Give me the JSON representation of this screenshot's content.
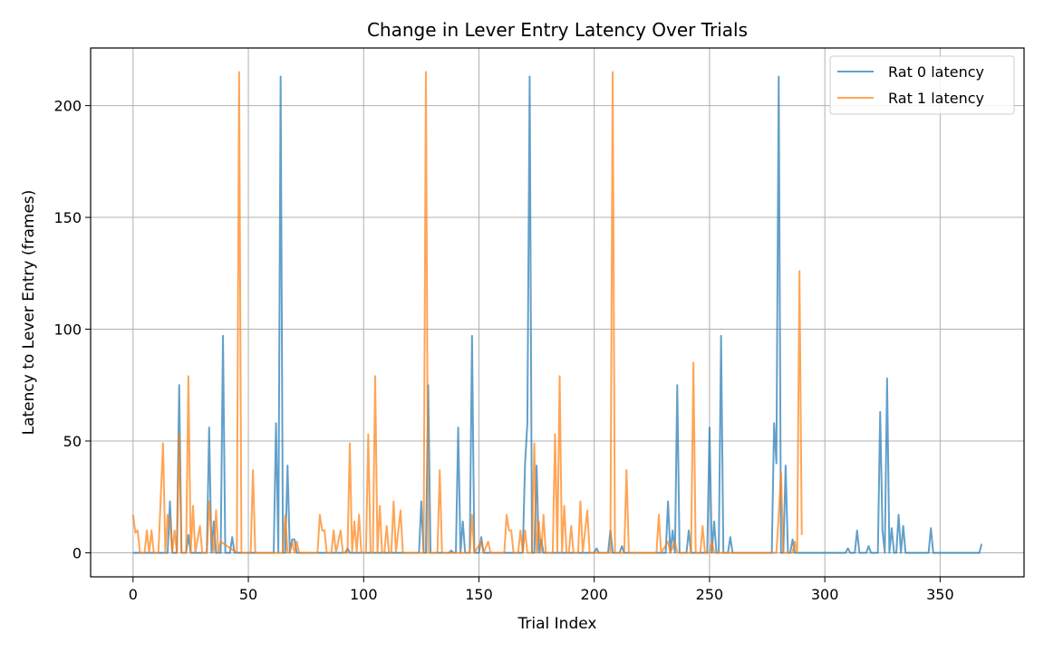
{
  "chart_data": {
    "type": "line",
    "title": "Change in Lever Entry Latency Over Trials",
    "xlabel": "Trial Index",
    "ylabel": "Latency to Lever Entry (frames)",
    "xlim": [
      -18.4,
      386.4
    ],
    "ylim": [
      -10.75,
      225.75
    ],
    "xticks": [
      0,
      50,
      100,
      150,
      200,
      250,
      300,
      350
    ],
    "yticks": [
      0,
      50,
      100,
      150,
      200
    ],
    "grid": true,
    "legend_position": "top-right",
    "series": [
      {
        "name": "Rat 0 latency",
        "color": "#1f77b4",
        "points": [
          [
            0,
            0
          ],
          [
            15,
            0
          ],
          [
            16,
            23
          ],
          [
            17,
            0
          ],
          [
            19,
            0
          ],
          [
            20,
            75
          ],
          [
            21,
            0
          ],
          [
            23,
            0
          ],
          [
            24,
            8
          ],
          [
            25,
            0
          ],
          [
            32,
            0
          ],
          [
            33,
            56
          ],
          [
            34,
            0
          ],
          [
            35,
            14
          ],
          [
            36,
            0
          ],
          [
            38,
            0
          ],
          [
            39,
            97
          ],
          [
            40,
            0
          ],
          [
            42,
            0
          ],
          [
            43,
            7
          ],
          [
            44,
            0
          ],
          [
            61,
            0
          ],
          [
            62,
            58
          ],
          [
            63,
            0
          ],
          [
            64,
            213
          ],
          [
            65,
            0
          ],
          [
            66,
            0
          ],
          [
            67,
            39
          ],
          [
            68,
            0
          ],
          [
            69,
            6
          ],
          [
            70,
            6
          ],
          [
            71,
            0
          ],
          [
            92,
            0
          ],
          [
            93,
            2
          ],
          [
            94,
            0
          ],
          [
            124,
            0
          ],
          [
            125,
            23
          ],
          [
            126,
            0
          ],
          [
            127,
            0
          ],
          [
            128,
            75
          ],
          [
            129,
            0
          ],
          [
            137,
            0
          ],
          [
            138,
            1
          ],
          [
            139,
            0
          ],
          [
            140,
            0
          ],
          [
            141,
            56
          ],
          [
            142,
            0
          ],
          [
            143,
            14
          ],
          [
            144,
            0
          ],
          [
            146,
            0
          ],
          [
            147,
            97
          ],
          [
            148,
            0
          ],
          [
            150,
            0
          ],
          [
            151,
            7
          ],
          [
            152,
            0
          ],
          [
            169,
            0
          ],
          [
            170,
            40
          ],
          [
            171,
            58
          ],
          [
            172,
            213
          ],
          [
            173,
            0
          ],
          [
            174,
            0
          ],
          [
            175,
            39
          ],
          [
            176,
            0
          ],
          [
            177,
            6
          ],
          [
            178,
            0
          ],
          [
            200,
            0
          ],
          [
            201,
            2
          ],
          [
            202,
            0
          ],
          [
            206,
            0
          ],
          [
            207,
            10
          ],
          [
            208,
            0
          ],
          [
            211,
            0
          ],
          [
            212,
            3
          ],
          [
            213,
            0
          ],
          [
            231,
            0
          ],
          [
            232,
            23
          ],
          [
            233,
            0
          ],
          [
            234,
            10
          ],
          [
            235,
            0
          ],
          [
            236,
            75
          ],
          [
            237,
            0
          ],
          [
            240,
            0
          ],
          [
            241,
            10
          ],
          [
            242,
            0
          ],
          [
            249,
            0
          ],
          [
            250,
            56
          ],
          [
            251,
            0
          ],
          [
            252,
            14
          ],
          [
            253,
            0
          ],
          [
            254,
            0
          ],
          [
            255,
            97
          ],
          [
            256,
            0
          ],
          [
            258,
            0
          ],
          [
            259,
            7
          ],
          [
            260,
            0
          ],
          [
            277,
            0
          ],
          [
            278,
            58
          ],
          [
            279,
            40
          ],
          [
            280,
            213
          ],
          [
            281,
            0
          ],
          [
            282,
            0
          ],
          [
            283,
            39
          ],
          [
            284,
            0
          ],
          [
            285,
            0
          ],
          [
            286,
            6
          ],
          [
            287,
            0
          ],
          [
            309,
            0
          ],
          [
            310,
            2
          ],
          [
            311,
            0
          ],
          [
            313,
            0
          ],
          [
            314,
            10
          ],
          [
            315,
            0
          ],
          [
            318,
            0
          ],
          [
            319,
            3
          ],
          [
            320,
            0
          ],
          [
            323,
            0
          ],
          [
            324,
            63
          ],
          [
            325,
            10
          ],
          [
            326,
            0
          ],
          [
            327,
            78
          ],
          [
            328,
            0
          ],
          [
            329,
            11
          ],
          [
            330,
            0
          ],
          [
            331,
            0
          ],
          [
            332,
            17
          ],
          [
            333,
            0
          ],
          [
            334,
            12
          ],
          [
            335,
            0
          ],
          [
            345,
            0
          ],
          [
            346,
            11
          ],
          [
            347,
            0
          ],
          [
            367,
            0
          ],
          [
            368,
            4
          ]
        ]
      },
      {
        "name": "Rat 1 latency",
        "color": "#ff7f0e",
        "points": [
          [
            0,
            17
          ],
          [
            1,
            9
          ],
          [
            2,
            10
          ],
          [
            3,
            0
          ],
          [
            5,
            0
          ],
          [
            6,
            10
          ],
          [
            7,
            0
          ],
          [
            8,
            10
          ],
          [
            9,
            0
          ],
          [
            11,
            0
          ],
          [
            13,
            49
          ],
          [
            14,
            0
          ],
          [
            15,
            17
          ],
          [
            16,
            14
          ],
          [
            17,
            0
          ],
          [
            18,
            10
          ],
          [
            19,
            0
          ],
          [
            20,
            53
          ],
          [
            21,
            0
          ],
          [
            23,
            0
          ],
          [
            24,
            79
          ],
          [
            25,
            0
          ],
          [
            26,
            21
          ],
          [
            27,
            0
          ],
          [
            29,
            12
          ],
          [
            30,
            0
          ],
          [
            32,
            0
          ],
          [
            33,
            23
          ],
          [
            34,
            7
          ],
          [
            35,
            0
          ],
          [
            36,
            19
          ],
          [
            37,
            0
          ],
          [
            38,
            5
          ],
          [
            45,
            0
          ],
          [
            46,
            215
          ],
          [
            47,
            0
          ],
          [
            51,
            0
          ],
          [
            52,
            37
          ],
          [
            53,
            0
          ],
          [
            65,
            0
          ],
          [
            66,
            17
          ],
          [
            67,
            0
          ],
          [
            68,
            0
          ],
          [
            69,
            5
          ],
          [
            70,
            0
          ],
          [
            71,
            5
          ],
          [
            72,
            0
          ],
          [
            80,
            0
          ],
          [
            81,
            17
          ],
          [
            82,
            10
          ],
          [
            83,
            10
          ],
          [
            84,
            0
          ],
          [
            86,
            0
          ],
          [
            87,
            10
          ],
          [
            88,
            0
          ],
          [
            90,
            10
          ],
          [
            91,
            0
          ],
          [
            93,
            0
          ],
          [
            94,
            49
          ],
          [
            95,
            0
          ],
          [
            96,
            14
          ],
          [
            97,
            0
          ],
          [
            98,
            17
          ],
          [
            99,
            0
          ],
          [
            101,
            0
          ],
          [
            102,
            53
          ],
          [
            103,
            0
          ],
          [
            104,
            0
          ],
          [
            105,
            79
          ],
          [
            106,
            0
          ],
          [
            107,
            21
          ],
          [
            108,
            0
          ],
          [
            109,
            0
          ],
          [
            110,
            12
          ],
          [
            111,
            0
          ],
          [
            112,
            0
          ],
          [
            113,
            23
          ],
          [
            114,
            0
          ],
          [
            116,
            19
          ],
          [
            117,
            0
          ],
          [
            126,
            0
          ],
          [
            127,
            215
          ],
          [
            128,
            0
          ],
          [
            132,
            0
          ],
          [
            133,
            37
          ],
          [
            134,
            0
          ],
          [
            146,
            0
          ],
          [
            147,
            17
          ],
          [
            148,
            0
          ],
          [
            151,
            5
          ],
          [
            152,
            0
          ],
          [
            154,
            5
          ],
          [
            155,
            0
          ],
          [
            161,
            0
          ],
          [
            162,
            17
          ],
          [
            163,
            10
          ],
          [
            164,
            10
          ],
          [
            165,
            0
          ],
          [
            167,
            0
          ],
          [
            168,
            10
          ],
          [
            169,
            0
          ],
          [
            170,
            10
          ],
          [
            171,
            0
          ],
          [
            173,
            0
          ],
          [
            174,
            49
          ],
          [
            175,
            0
          ],
          [
            176,
            14
          ],
          [
            177,
            0
          ],
          [
            178,
            17
          ],
          [
            179,
            0
          ],
          [
            182,
            0
          ],
          [
            183,
            53
          ],
          [
            184,
            0
          ],
          [
            185,
            79
          ],
          [
            186,
            0
          ],
          [
            187,
            21
          ],
          [
            188,
            0
          ],
          [
            189,
            0
          ],
          [
            190,
            12
          ],
          [
            191,
            0
          ],
          [
            193,
            0
          ],
          [
            194,
            23
          ],
          [
            195,
            0
          ],
          [
            197,
            19
          ],
          [
            198,
            0
          ],
          [
            207,
            0
          ],
          [
            208,
            215
          ],
          [
            209,
            0
          ],
          [
            213,
            0
          ],
          [
            214,
            37
          ],
          [
            215,
            0
          ],
          [
            227,
            0
          ],
          [
            228,
            17
          ],
          [
            229,
            0
          ],
          [
            232,
            5
          ],
          [
            233,
            0
          ],
          [
            235,
            5
          ],
          [
            236,
            0
          ],
          [
            242,
            0
          ],
          [
            243,
            85
          ],
          [
            244,
            0
          ],
          [
            246,
            0
          ],
          [
            247,
            12
          ],
          [
            248,
            0
          ],
          [
            250,
            0
          ],
          [
            251,
            5
          ],
          [
            252,
            0
          ],
          [
            279,
            0
          ],
          [
            280,
            17
          ],
          [
            281,
            36
          ],
          [
            282,
            0
          ],
          [
            286,
            0
          ],
          [
            287,
            5
          ],
          [
            288,
            0
          ],
          [
            289,
            126
          ],
          [
            290,
            8
          ]
        ]
      }
    ]
  }
}
